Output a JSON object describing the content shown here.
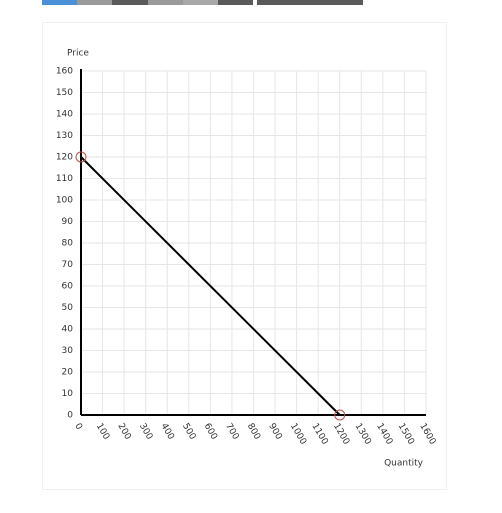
{
  "chart_data": {
    "type": "line",
    "xlabel": "Quantity",
    "ylabel": "Price",
    "x": [
      0,
      1200
    ],
    "series": [
      {
        "color": "#000000",
        "marker_color": "#c0504d",
        "values": [
          120,
          0
        ]
      }
    ],
    "xlim": [
      0,
      1600
    ],
    "xticks": [
      0,
      100,
      200,
      300,
      400,
      500,
      600,
      700,
      800,
      900,
      1000,
      1100,
      1200,
      1300,
      1400,
      1500,
      1600
    ],
    "ylim": [
      0,
      160
    ],
    "yticks": [
      0,
      10,
      20,
      30,
      40,
      50,
      60,
      70,
      80,
      90,
      100,
      110,
      120,
      130,
      140,
      150,
      160
    ],
    "grid": true
  }
}
